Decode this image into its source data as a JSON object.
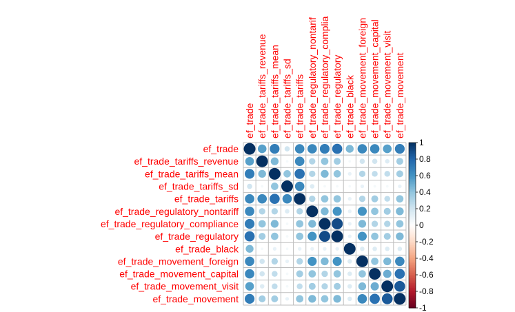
{
  "chart_data": {
    "type": "heatmap",
    "style": "corrplot-circle",
    "labels": [
      "ef_trade",
      "ef_trade_tariffs_revenue",
      "ef_trade_tariffs_mean",
      "ef_trade_tariffs_sd",
      "ef_trade_tariffs",
      "ef_trade_regulatory_nontariff",
      "ef_trade_regulatory_compliance",
      "ef_trade_regulatory",
      "ef_trade_black",
      "ef_trade_movement_foreign",
      "ef_trade_movement_capital",
      "ef_trade_movement_visit",
      "ef_trade_movement"
    ],
    "column_labels": [
      "ef_trade",
      "ef_trade_tariffs_revenue",
      "ef_trade_tariffs_mean",
      "ef_trade_tariffs_sd",
      "ef_trade_tariffs",
      "ef_trade_regulatory_nontarif",
      "ef_trade_regulatory_complia",
      "ef_trade_regulatory",
      "ef_trade_black",
      "ef_trade_movement_foreign",
      "ef_trade_movement_capital",
      "ef_trade_movement_visit",
      "ef_trade_movement"
    ],
    "matrix": [
      [
        1.0,
        0.55,
        0.7,
        0.2,
        0.65,
        0.65,
        0.7,
        0.75,
        0.45,
        0.65,
        0.65,
        0.55,
        0.7
      ],
      [
        0.55,
        1.0,
        0.45,
        0.05,
        0.65,
        0.3,
        0.4,
        0.35,
        0.05,
        0.2,
        0.2,
        0.15,
        0.35
      ],
      [
        0.7,
        0.45,
        1.0,
        0.4,
        0.75,
        0.3,
        0.45,
        0.4,
        0.1,
        0.3,
        0.25,
        0.25,
        0.35
      ],
      [
        0.2,
        0.05,
        0.4,
        1.0,
        0.65,
        0.15,
        0.05,
        0.05,
        0.05,
        0.1,
        0.05,
        0.05,
        0.1
      ],
      [
        0.65,
        0.65,
        0.75,
        0.65,
        1.0,
        0.3,
        0.4,
        0.4,
        0.1,
        0.3,
        0.35,
        0.25,
        0.4
      ],
      [
        0.65,
        0.3,
        0.3,
        0.15,
        0.3,
        1.0,
        0.45,
        0.6,
        0.1,
        0.6,
        0.4,
        0.35,
        0.45
      ],
      [
        0.7,
        0.4,
        0.45,
        0.05,
        0.4,
        0.45,
        1.0,
        0.9,
        0.1,
        0.45,
        0.3,
        0.3,
        0.4
      ],
      [
        0.75,
        0.35,
        0.4,
        0.05,
        0.4,
        0.6,
        0.9,
        1.0,
        0.1,
        0.6,
        0.4,
        0.35,
        0.45
      ],
      [
        0.45,
        0.05,
        0.1,
        0.05,
        0.1,
        0.1,
        0.1,
        0.1,
        1.0,
        0.15,
        0.15,
        0.15,
        0.15
      ],
      [
        0.65,
        0.2,
        0.3,
        0.1,
        0.3,
        0.6,
        0.45,
        0.6,
        0.15,
        1.0,
        0.4,
        0.45,
        0.65
      ],
      [
        0.65,
        0.2,
        0.25,
        0.05,
        0.35,
        0.4,
        0.3,
        0.4,
        0.15,
        0.4,
        1.0,
        0.5,
        0.75
      ],
      [
        0.55,
        0.15,
        0.25,
        0.05,
        0.25,
        0.35,
        0.3,
        0.35,
        0.15,
        0.45,
        0.5,
        1.0,
        0.85
      ],
      [
        0.7,
        0.35,
        0.35,
        0.1,
        0.4,
        0.45,
        0.4,
        0.45,
        0.15,
        0.65,
        0.75,
        0.85,
        1.0
      ]
    ],
    "colorbar_ticks": [
      "1",
      "0.8",
      "0.6",
      "0.4",
      "0.2",
      "0",
      "-0.2",
      "-0.4",
      "-0.6",
      "-0.8",
      "-1"
    ],
    "colorbar_range": [
      -1,
      1
    ],
    "colors": {
      "negative_strong": "#67001F",
      "negative_mid": "#D6604D",
      "neutral": "#FFFFFF",
      "positive_mid": "#4393C3",
      "positive_strong": "#053061",
      "label": "#FF0000",
      "grid": "#BEBEBE"
    }
  }
}
